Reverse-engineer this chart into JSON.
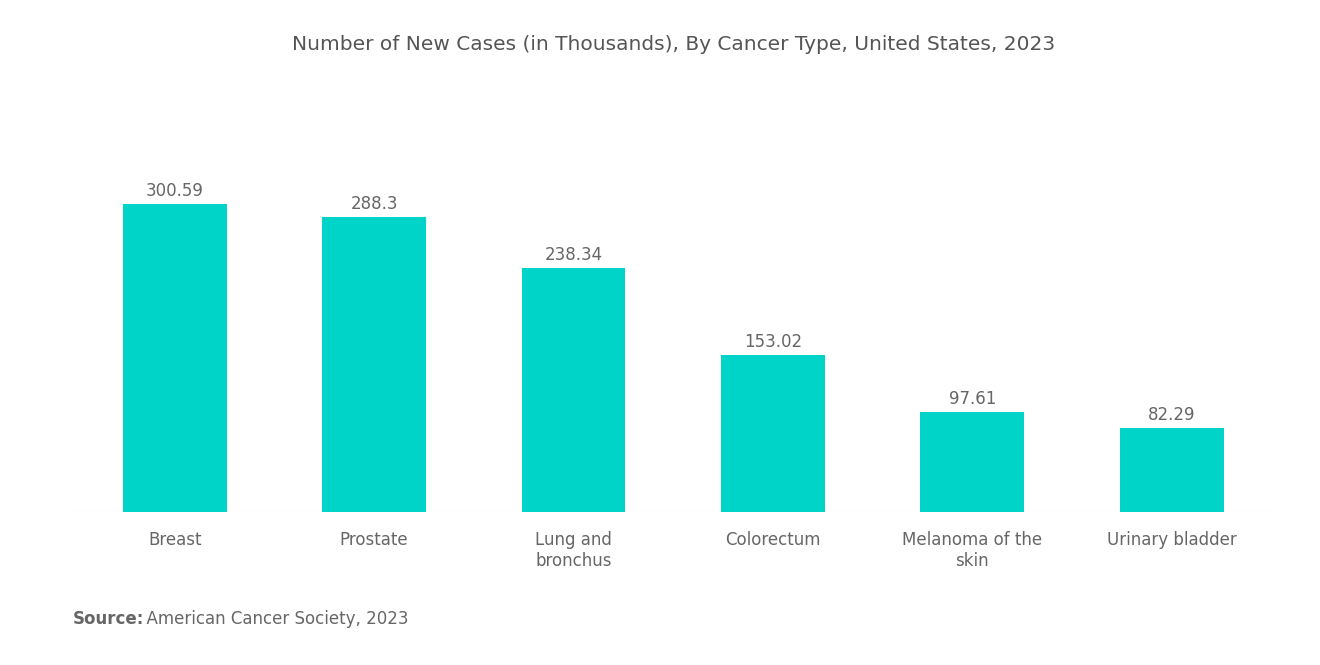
{
  "title": "Number of New Cases (in Thousands), By Cancer Type, United States, 2023",
  "categories": [
    "Breast",
    "Prostate",
    "Lung and\nbronchus",
    "Colorectum",
    "Melanoma of the\nskin",
    "Urinary bladder"
  ],
  "values": [
    300.59,
    288.3,
    238.34,
    153.02,
    97.61,
    82.29
  ],
  "bar_color": "#00D4C8",
  "value_color": "#666666",
  "title_color": "#555555",
  "label_color": "#666666",
  "background_color": "#ffffff",
  "source_bold": "Source:",
  "source_normal": "  American Cancer Society, 2023",
  "ylim": [
    0,
    370
  ],
  "bar_width": 0.52,
  "title_fontsize": 14.5,
  "label_fontsize": 12,
  "value_fontsize": 12,
  "source_fontsize": 12
}
